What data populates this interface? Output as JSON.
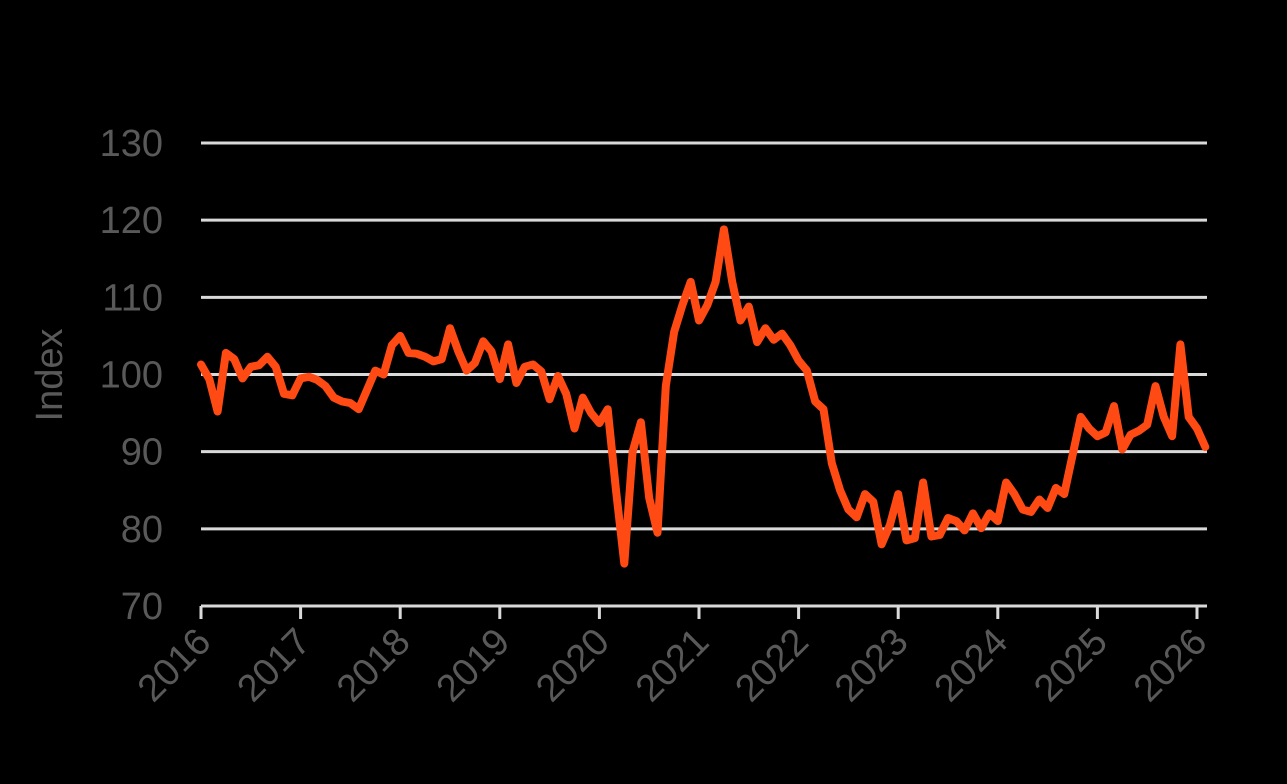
{
  "chart_data": {
    "type": "line",
    "title": "",
    "xlabel": "",
    "ylabel": "Index",
    "ylim": [
      70,
      130
    ],
    "yticks": [
      70,
      80,
      90,
      100,
      110,
      120,
      130
    ],
    "ytick_labels": [
      "70",
      "80",
      "90",
      "100",
      "110",
      "120",
      "130"
    ],
    "xticks": [
      "2016",
      "2017",
      "2018",
      "2019",
      "2020",
      "2021",
      "2022",
      "2023",
      "2024",
      "2025",
      "2026"
    ],
    "x_start": "2016-01",
    "x_frequency": "monthly",
    "grid": "horizontal",
    "legend": "none",
    "series": [
      {
        "name": "Index",
        "color": "#FF4A14",
        "values": [
          101.3,
          99.4,
          95.2,
          102.8,
          102.0,
          99.5,
          101.0,
          101.2,
          102.3,
          101.0,
          97.5,
          97.3,
          99.5,
          99.7,
          99.3,
          98.5,
          97.0,
          96.5,
          96.3,
          95.5,
          98.0,
          100.5,
          100.0,
          103.8,
          105.0,
          102.8,
          102.7,
          102.3,
          101.7,
          102.0,
          106.0,
          103.0,
          100.5,
          101.5,
          104.3,
          103.0,
          99.4,
          103.9,
          98.9,
          101.0,
          101.3,
          100.4,
          96.8,
          99.8,
          97.5,
          93.0,
          97.0,
          95.0,
          93.7,
          95.5,
          85.0,
          75.5,
          90.0,
          93.8,
          84.0,
          79.5,
          98.5,
          105.5,
          109.0,
          112.0,
          107.0,
          109.0,
          112.0,
          118.8,
          112.0,
          107.0,
          108.8,
          104.2,
          106.0,
          104.5,
          105.3,
          103.8,
          101.8,
          100.5,
          96.5,
          95.5,
          88.5,
          85.0,
          82.5,
          81.5,
          84.5,
          83.5,
          78.0,
          80.5,
          84.5,
          78.5,
          78.8,
          86.0,
          79.0,
          79.2,
          81.4,
          81.0,
          79.8,
          82.0,
          80.1,
          82.0,
          81.0,
          86.0,
          84.5,
          82.5,
          82.2,
          83.8,
          82.7,
          85.3,
          84.5,
          89.5,
          94.5,
          93.0,
          92.0,
          92.5,
          95.9,
          90.3,
          92.2,
          92.7,
          93.5,
          98.5,
          94.5,
          92.0,
          103.9,
          94.5,
          93.0,
          90.6
        ]
      }
    ]
  },
  "style": {
    "background": "#000000",
    "gridline_color": "#D9D9D9",
    "axis_color": "#D9D9D9",
    "tick_label_color": "#595959",
    "line_color": "#FF4A14"
  }
}
